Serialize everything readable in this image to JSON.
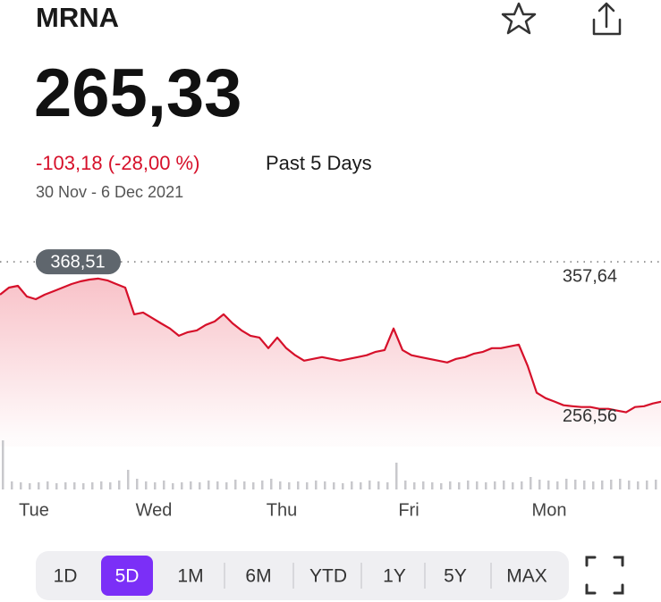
{
  "header": {
    "ticker": "MRNA"
  },
  "quote": {
    "price": "265,33",
    "change": "-103,18 (-28,00 %)",
    "period": "Past 5 Days",
    "date_range": "30 Nov - 6 Dec 2021"
  },
  "chart_data": {
    "type": "line",
    "series": [
      {
        "name": "MRNA",
        "color": "#d6102a",
        "values": [
          344.8,
          349.9,
          351.2,
          343.5,
          341.5,
          344.8,
          347.3,
          349.9,
          352.5,
          354.4,
          355.7,
          356.4,
          355.1,
          352.5,
          349.9,
          330.6,
          331.9,
          328.0,
          324.1,
          320.3,
          315.1,
          317.7,
          319.0,
          322.9,
          325.4,
          330.6,
          324.1,
          319.0,
          315.1,
          313.8,
          306.1,
          313.8,
          306.1,
          301.0,
          297.1,
          298.4,
          299.7,
          298.4,
          297.1,
          298.4,
          299.7,
          301.0,
          303.5,
          304.8,
          320.3,
          304.8,
          301.0,
          299.7,
          298.4,
          297.1,
          295.8,
          298.4,
          299.7,
          302.2,
          303.5,
          306.1,
          306.1,
          307.4,
          308.7,
          293.2,
          273.9,
          270.0,
          267.5,
          264.9,
          264.2,
          263.6,
          263.6,
          262.3,
          262.3,
          261.0,
          259.8,
          263.6,
          264.2,
          266.2,
          267.5
        ]
      }
    ],
    "ylim": [
      235,
      377
    ],
    "yticks": [
      {
        "value": 357.64,
        "label": "357,64"
      },
      {
        "value": 256.56,
        "label": "256,56"
      }
    ],
    "previous_close": {
      "value": 368.51,
      "label": "368,51"
    },
    "xlim": [
      0,
      74
    ],
    "xticks": [
      {
        "value": 3.8,
        "label": "Tue"
      },
      {
        "value": 17.2,
        "label": "Wed"
      },
      {
        "value": 31.5,
        "label": "Thu"
      },
      {
        "value": 45.7,
        "label": "Fri"
      },
      {
        "value": 61.4,
        "label": "Mon"
      }
    ],
    "volume": {
      "color": "#c8c8cc",
      "values": [
        55,
        9,
        8,
        7,
        8,
        9,
        7,
        8,
        8,
        7,
        8,
        9,
        8,
        10,
        22,
        12,
        9,
        8,
        10,
        7,
        8,
        9,
        8,
        10,
        9,
        8,
        11,
        9,
        8,
        10,
        12,
        9,
        8,
        9,
        8,
        10,
        9,
        8,
        7,
        9,
        8,
        10,
        9,
        8,
        30,
        10,
        8,
        9,
        8,
        7,
        9,
        8,
        10,
        9,
        8,
        9,
        10,
        8,
        9,
        14,
        11,
        10,
        9,
        12,
        11,
        10,
        9,
        10,
        11,
        12,
        10,
        9,
        10,
        11,
        10
      ]
    }
  },
  "range_selector": {
    "options": [
      "1D",
      "5D",
      "1M",
      "6M",
      "YTD",
      "1Y",
      "5Y",
      "MAX"
    ],
    "selected_index": 1
  }
}
